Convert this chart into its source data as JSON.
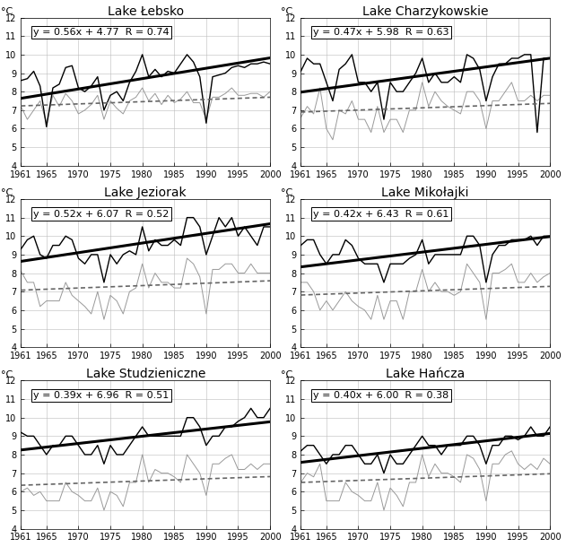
{
  "lakes": [
    {
      "title": "Lake Łebsko",
      "equation": "y = 0.56x + 4.77  R = 0.74",
      "wt_slope_per_decade": 0.56,
      "at_slope_per_decade": 0.12,
      "wt_data": [
        8.6,
        8.7,
        9.1,
        8.3,
        6.1,
        8.2,
        8.4,
        9.3,
        9.4,
        8.2,
        8.0,
        8.3,
        8.8,
        7.0,
        7.8,
        8.0,
        7.5,
        8.5,
        9.1,
        10.0,
        8.8,
        9.2,
        8.8,
        9.1,
        9.0,
        9.5,
        10.0,
        9.6,
        8.8,
        6.3,
        8.8,
        8.9,
        9.0,
        9.3,
        9.4,
        9.3,
        9.5,
        9.5,
        9.6,
        9.5
      ],
      "at_data": [
        7.2,
        6.5,
        7.0,
        7.5,
        6.3,
        7.8,
        7.2,
        7.9,
        7.5,
        6.8,
        7.0,
        7.3,
        7.8,
        6.5,
        7.5,
        7.1,
        6.8,
        7.5,
        7.7,
        8.2,
        7.5,
        7.9,
        7.3,
        7.8,
        7.4,
        7.6,
        8.0,
        7.4,
        7.4,
        6.5,
        7.7,
        7.7,
        7.9,
        8.2,
        7.8,
        7.8,
        7.9,
        7.9,
        7.7,
        8.0
      ]
    },
    {
      "title": "Lake Charzykowskie",
      "equation": "y = 0.47x + 5.98  R = 0.63",
      "wt_slope_per_decade": 0.47,
      "at_slope_per_decade": 0.12,
      "wt_data": [
        9.1,
        9.8,
        9.5,
        9.5,
        8.5,
        7.5,
        9.2,
        9.5,
        10.0,
        8.5,
        8.5,
        8.0,
        8.5,
        6.5,
        8.5,
        8.0,
        8.0,
        8.5,
        9.0,
        9.8,
        8.5,
        9.0,
        8.5,
        8.5,
        8.8,
        8.5,
        10.0,
        9.8,
        9.2,
        7.5,
        8.8,
        9.5,
        9.5,
        9.8,
        9.8,
        10.0,
        10.0,
        5.8,
        9.8,
        9.8
      ],
      "at_data": [
        6.6,
        7.2,
        6.8,
        8.2,
        6.0,
        5.4,
        7.0,
        6.8,
        7.5,
        6.5,
        6.5,
        5.8,
        7.2,
        5.8,
        6.5,
        6.5,
        5.8,
        7.0,
        7.0,
        8.5,
        7.2,
        8.0,
        7.5,
        7.2,
        7.0,
        6.8,
        8.0,
        8.0,
        7.5,
        6.0,
        7.5,
        7.5,
        8.0,
        8.5,
        7.5,
        7.5,
        7.8,
        7.5,
        7.8,
        7.8
      ]
    },
    {
      "title": "Lake Jeziorak",
      "equation": "y = 0.52x + 6.07  R = 0.52",
      "wt_slope_per_decade": 0.52,
      "at_slope_per_decade": 0.13,
      "wt_data": [
        9.3,
        9.8,
        10.0,
        9.0,
        8.8,
        9.5,
        9.5,
        10.0,
        9.8,
        8.8,
        8.5,
        9.0,
        9.0,
        7.5,
        9.0,
        8.5,
        9.0,
        9.2,
        9.0,
        10.5,
        9.2,
        9.8,
        9.5,
        9.5,
        9.8,
        9.5,
        11.0,
        11.0,
        10.5,
        9.0,
        10.0,
        11.0,
        10.5,
        11.0,
        10.0,
        10.5,
        10.0,
        9.5,
        10.5,
        10.5
      ],
      "at_data": [
        8.1,
        7.5,
        7.5,
        6.2,
        6.5,
        6.5,
        6.5,
        7.5,
        6.8,
        6.5,
        6.2,
        5.8,
        7.0,
        5.5,
        6.8,
        6.5,
        5.8,
        7.0,
        7.2,
        8.5,
        7.2,
        8.0,
        7.5,
        7.5,
        7.2,
        7.2,
        8.8,
        8.5,
        7.8,
        5.8,
        8.2,
        8.2,
        8.5,
        8.5,
        8.0,
        8.0,
        8.5,
        8.0,
        8.0,
        8.0
      ]
    },
    {
      "title": "Lake Mikołajki",
      "equation": "y = 0.42x + 6.43  R = 0.61",
      "wt_slope_per_decade": 0.42,
      "at_slope_per_decade": 0.12,
      "wt_data": [
        9.5,
        9.8,
        9.8,
        9.0,
        8.5,
        9.0,
        9.0,
        9.8,
        9.5,
        8.8,
        8.5,
        8.5,
        8.5,
        7.5,
        8.5,
        8.5,
        8.5,
        8.8,
        9.0,
        9.8,
        8.5,
        9.0,
        9.0,
        9.0,
        9.0,
        9.0,
        10.0,
        10.0,
        9.5,
        7.5,
        9.0,
        9.5,
        9.5,
        9.8,
        9.8,
        9.8,
        10.0,
        9.5,
        10.0,
        10.0
      ],
      "at_data": [
        7.5,
        7.5,
        7.0,
        6.0,
        6.5,
        6.0,
        6.5,
        7.0,
        6.5,
        6.2,
        6.0,
        5.5,
        6.8,
        5.5,
        6.5,
        6.5,
        5.5,
        7.0,
        7.0,
        8.2,
        7.0,
        7.5,
        7.0,
        7.0,
        6.8,
        7.0,
        8.5,
        8.0,
        7.5,
        5.5,
        8.0,
        8.0,
        8.2,
        8.5,
        7.5,
        7.5,
        8.0,
        7.5,
        7.8,
        8.0
      ]
    },
    {
      "title": "Lake Studzieniczne",
      "equation": "y = 0.39x + 6.96  R = 0.51",
      "wt_slope_per_decade": 0.39,
      "at_slope_per_decade": 0.12,
      "wt_data": [
        9.2,
        9.0,
        9.0,
        8.5,
        8.0,
        8.5,
        8.5,
        9.0,
        9.0,
        8.5,
        8.0,
        8.0,
        8.5,
        7.5,
        8.5,
        8.0,
        8.0,
        8.5,
        9.0,
        9.5,
        9.0,
        9.0,
        9.0,
        9.0,
        9.0,
        9.0,
        10.0,
        10.0,
        9.5,
        8.5,
        9.0,
        9.0,
        9.5,
        9.5,
        9.8,
        10.0,
        10.5,
        10.0,
        10.0,
        10.5
      ],
      "at_data": [
        6.0,
        6.2,
        5.8,
        6.0,
        5.5,
        5.5,
        5.5,
        6.5,
        6.0,
        5.8,
        5.5,
        5.5,
        6.2,
        5.0,
        6.0,
        5.8,
        5.2,
        6.5,
        6.5,
        8.0,
        6.5,
        7.2,
        7.0,
        7.0,
        6.8,
        6.5,
        8.0,
        7.5,
        7.0,
        5.8,
        7.5,
        7.5,
        7.8,
        8.0,
        7.2,
        7.2,
        7.5,
        7.2,
        7.5,
        7.5
      ]
    },
    {
      "title": "Lake Hańcza",
      "equation": "y = 0.40x + 6.00  R = 0.38",
      "wt_slope_per_decade": 0.4,
      "at_slope_per_decade": 0.12,
      "wt_data": [
        8.2,
        8.5,
        8.5,
        8.0,
        7.5,
        8.0,
        8.0,
        8.5,
        8.5,
        8.0,
        7.5,
        7.5,
        8.0,
        7.0,
        8.0,
        7.5,
        7.5,
        8.0,
        8.5,
        9.0,
        8.5,
        8.5,
        8.0,
        8.5,
        8.5,
        8.5,
        9.0,
        9.0,
        8.5,
        7.5,
        8.5,
        8.5,
        9.0,
        9.0,
        8.8,
        9.0,
        9.5,
        9.0,
        9.0,
        9.5
      ],
      "at_data": [
        6.5,
        7.0,
        6.8,
        7.5,
        5.5,
        5.5,
        5.5,
        6.5,
        6.0,
        5.8,
        5.5,
        5.5,
        6.5,
        5.0,
        6.2,
        5.8,
        5.2,
        6.5,
        6.5,
        8.0,
        6.8,
        7.5,
        7.0,
        7.0,
        6.8,
        6.5,
        8.0,
        7.8,
        7.2,
        5.5,
        7.5,
        7.5,
        8.0,
        8.2,
        7.5,
        7.2,
        7.5,
        7.2,
        7.8,
        7.5
      ]
    }
  ],
  "years_start": 1961,
  "years_end": 2000,
  "n_years": 40,
  "ylim": [
    4,
    12
  ],
  "yticks": [
    4,
    5,
    6,
    7,
    8,
    9,
    10,
    11,
    12
  ],
  "xticks": [
    1961,
    1965,
    1970,
    1975,
    1980,
    1985,
    1990,
    1995,
    2000
  ],
  "wt_color": "#000000",
  "at_color": "#999999",
  "trend_wt_color": "#000000",
  "trend_at_color": "#666666",
  "background_color": "#ffffff",
  "grid_color": "#bbbbbb",
  "equation_fontsize": 8,
  "title_fontsize": 10,
  "axis_label_fontsize": 8,
  "tick_fontsize": 7
}
